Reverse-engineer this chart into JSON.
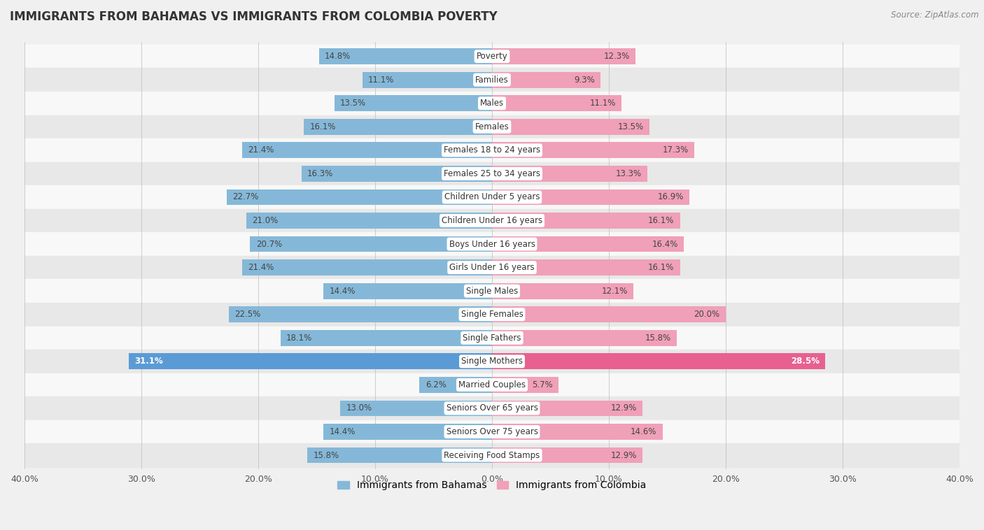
{
  "title": "IMMIGRANTS FROM BAHAMAS VS IMMIGRANTS FROM COLOMBIA POVERTY",
  "source": "Source: ZipAtlas.com",
  "categories": [
    "Poverty",
    "Families",
    "Males",
    "Females",
    "Females 18 to 24 years",
    "Females 25 to 34 years",
    "Children Under 5 years",
    "Children Under 16 years",
    "Boys Under 16 years",
    "Girls Under 16 years",
    "Single Males",
    "Single Females",
    "Single Fathers",
    "Single Mothers",
    "Married Couples",
    "Seniors Over 65 years",
    "Seniors Over 75 years",
    "Receiving Food Stamps"
  ],
  "bahamas_values": [
    14.8,
    11.1,
    13.5,
    16.1,
    21.4,
    16.3,
    22.7,
    21.0,
    20.7,
    21.4,
    14.4,
    22.5,
    18.1,
    31.1,
    6.2,
    13.0,
    14.4,
    15.8
  ],
  "colombia_values": [
    12.3,
    9.3,
    11.1,
    13.5,
    17.3,
    13.3,
    16.9,
    16.1,
    16.4,
    16.1,
    12.1,
    20.0,
    15.8,
    28.5,
    5.7,
    12.9,
    14.6,
    12.9
  ],
  "bahamas_color": "#85B8D8",
  "colombia_color": "#F0A0B8",
  "bahamas_highlight_color": "#5B9BD5",
  "colombia_highlight_color": "#E86090",
  "highlight_row": "Single Mothers",
  "xlim": 40.0,
  "bar_height": 0.68,
  "background_color": "#f0f0f0",
  "row_bg_light": "#f8f8f8",
  "row_bg_dark": "#e8e8e8",
  "label_fontsize": 8.5,
  "title_fontsize": 12,
  "legend_bahamas": "Immigrants from Bahamas",
  "legend_colombia": "Immigrants from Colombia",
  "xtick_labels": [
    "40.0%",
    "30.0%",
    "20.0%",
    "10.0%",
    "0.0%",
    "10.0%",
    "20.0%",
    "30.0%",
    "40.0%"
  ]
}
